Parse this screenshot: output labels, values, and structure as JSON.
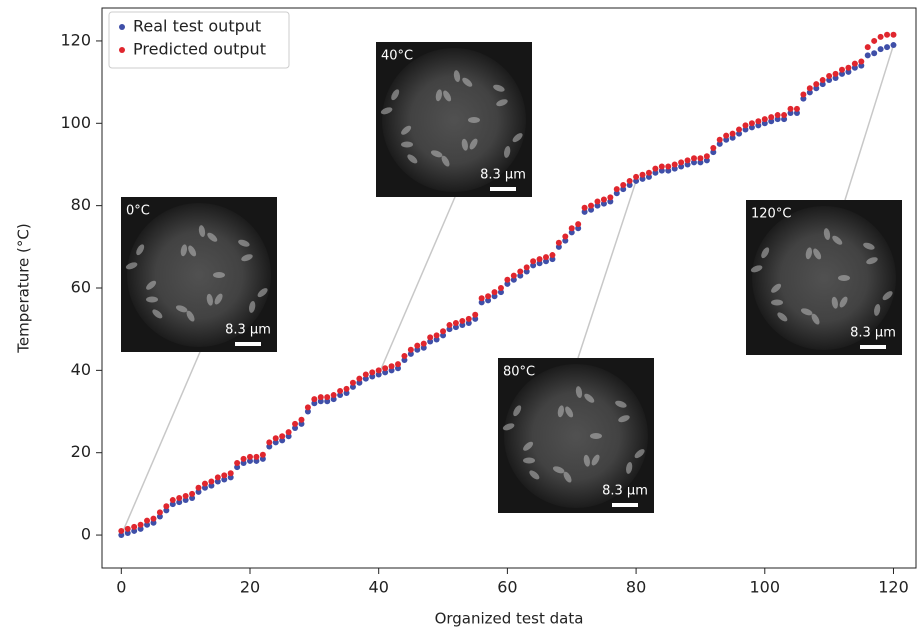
{
  "chart_data": {
    "type": "scatter",
    "xlabel": "Organized test data",
    "ylabel": "Temperature  (°C)",
    "x": [
      0,
      1,
      2,
      3,
      4,
      5,
      6,
      7,
      8,
      9,
      10,
      11,
      12,
      13,
      14,
      15,
      16,
      17,
      18,
      19,
      20,
      21,
      22,
      23,
      24,
      25,
      26,
      27,
      28,
      29,
      30,
      31,
      32,
      33,
      34,
      35,
      36,
      37,
      38,
      39,
      40,
      41,
      42,
      43,
      44,
      45,
      46,
      47,
      48,
      49,
      50,
      51,
      52,
      53,
      54,
      55,
      56,
      57,
      58,
      59,
      60,
      61,
      62,
      63,
      64,
      65,
      66,
      67,
      68,
      69,
      70,
      71,
      72,
      73,
      74,
      75,
      76,
      77,
      78,
      79,
      80,
      81,
      82,
      83,
      84,
      85,
      86,
      87,
      88,
      89,
      90,
      91,
      92,
      93,
      94,
      95,
      96,
      97,
      98,
      99,
      100,
      101,
      102,
      103,
      104,
      105,
      106,
      107,
      108,
      109,
      110,
      111,
      112,
      113,
      114,
      115,
      116,
      117,
      118,
      119,
      120
    ],
    "series": [
      {
        "name": "Real test output",
        "color": "#3f4fa8",
        "values": [
          0,
          0.5,
          1,
          1.5,
          2.5,
          3,
          4.5,
          6,
          7.5,
          8,
          8.5,
          9,
          10.5,
          11.5,
          12,
          13,
          13.5,
          14,
          16.5,
          17.5,
          18,
          18,
          18.5,
          21.5,
          22.5,
          23,
          24,
          26,
          27,
          30,
          32,
          32.5,
          32.5,
          33,
          34,
          34.5,
          36,
          37,
          38,
          38.5,
          39,
          39.5,
          40,
          40.5,
          42.5,
          44,
          45,
          45.5,
          47,
          47.5,
          48.5,
          50,
          50.5,
          51,
          51.5,
          52.5,
          56.5,
          57,
          58,
          59,
          61,
          62,
          63,
          64,
          65.5,
          66,
          66.5,
          67,
          70,
          71.5,
          73.5,
          74.5,
          78.5,
          79,
          80,
          80.5,
          81,
          83,
          84,
          85,
          86,
          86.5,
          87,
          88,
          88.5,
          88.5,
          89,
          89.5,
          90,
          90.5,
          90.5,
          91,
          93,
          95,
          96,
          96.5,
          97.5,
          98.5,
          99,
          99.5,
          100,
          100.5,
          101,
          101,
          102.5,
          102.5,
          106,
          107.5,
          108.5,
          109.5,
          110.5,
          111,
          112,
          112.5,
          113.5,
          114,
          116.5,
          117,
          118,
          118.5,
          119
        ]
      },
      {
        "name": "Predicted output",
        "color": "#e0262e",
        "values": [
          1,
          1.5,
          2,
          2.5,
          3.5,
          4,
          5.5,
          7,
          8.5,
          9,
          9.5,
          10,
          11.5,
          12.5,
          13,
          14,
          14.5,
          15,
          17.5,
          18.5,
          19,
          19,
          19.5,
          22.5,
          23.5,
          24,
          25,
          27,
          28,
          31,
          33,
          33.5,
          33.5,
          34,
          35,
          35.5,
          37,
          38,
          39,
          39.5,
          40,
          40.5,
          41,
          41.5,
          43.5,
          45,
          46,
          46.5,
          48,
          48.5,
          49.5,
          51,
          51.5,
          52,
          52.5,
          53.5,
          57.5,
          58,
          59,
          60,
          62,
          63,
          64,
          65,
          66.5,
          67,
          67.5,
          68,
          71,
          72.5,
          74.5,
          75.5,
          79.5,
          80,
          81,
          81.5,
          82,
          84,
          85,
          86,
          87,
          87.5,
          88,
          89,
          89.5,
          89.5,
          90,
          90.5,
          91,
          91.5,
          91.5,
          92,
          94,
          96,
          97,
          97.5,
          98.5,
          99.5,
          100,
          100.5,
          101,
          101.5,
          102,
          102,
          103.5,
          103.5,
          107,
          108.5,
          109.5,
          110.5,
          111.5,
          112,
          113,
          113.5,
          114.5,
          115,
          118.5,
          120,
          121,
          121.5,
          121.5
        ]
      }
    ],
    "xlim": [
      -3,
      123.5
    ],
    "ylim": [
      -8,
      128
    ],
    "xticks": [
      0,
      20,
      40,
      60,
      80,
      100,
      120
    ],
    "yticks": [
      0,
      20,
      40,
      60,
      80,
      100,
      120
    ],
    "legend": "upper left",
    "insets": [
      {
        "label": "0°C",
        "scale": "8.3 μm"
      },
      {
        "label": "40°C",
        "scale": "8.3 μm"
      },
      {
        "label": "80°C",
        "scale": "8.3 μm"
      },
      {
        "label": "120°C",
        "scale": "8.3 μm"
      }
    ]
  }
}
